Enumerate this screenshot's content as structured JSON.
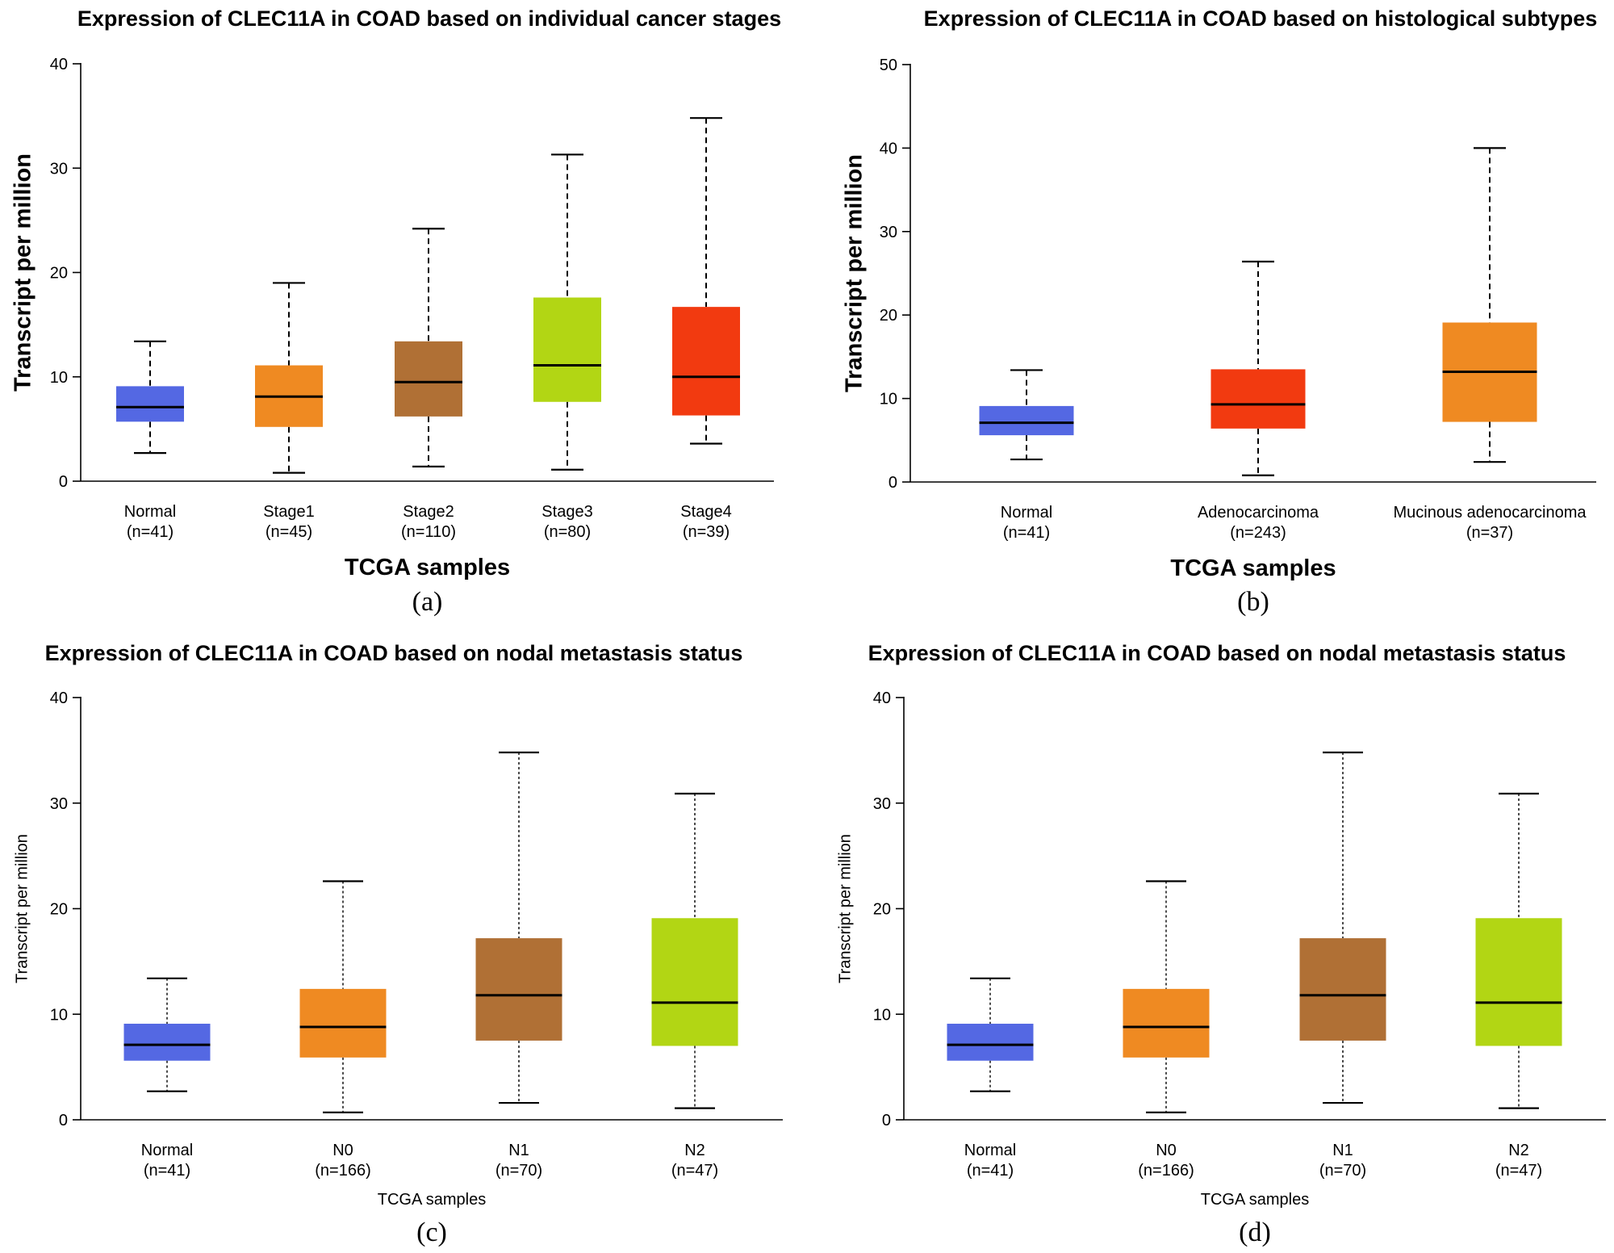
{
  "chart_data": [
    {
      "panel_label": "(a)",
      "type": "box",
      "title": "Expression of CLEC11A in COAD based on individual cancer stages",
      "xlabel": "TCGA samples",
      "ylabel": "Transcript per million",
      "ylim": [
        0,
        40
      ],
      "yticks": [
        0,
        10,
        20,
        30,
        40
      ],
      "grid": false,
      "categories": [
        {
          "name": "Normal",
          "n": "(n=41)",
          "color": "#5468e3",
          "whisker_low": 2.7,
          "q1": 5.7,
          "median": 7.1,
          "q3": 9.1,
          "whisker_high": 13.4
        },
        {
          "name": "Stage1",
          "n": "(n=45)",
          "color": "#ef8a22",
          "whisker_low": 0.8,
          "q1": 5.2,
          "median": 8.1,
          "q3": 11.1,
          "whisker_high": 19.0
        },
        {
          "name": "Stage2",
          "n": "(n=110)",
          "color": "#b07035",
          "whisker_low": 1.4,
          "q1": 6.2,
          "median": 9.5,
          "q3": 13.4,
          "whisker_high": 24.2
        },
        {
          "name": "Stage3",
          "n": "(n=80)",
          "color": "#b2d614",
          "whisker_low": 1.1,
          "q1": 7.6,
          "median": 11.1,
          "q3": 17.6,
          "whisker_high": 31.3
        },
        {
          "name": "Stage4",
          "n": "(n=39)",
          "color": "#f23a10",
          "whisker_low": 3.6,
          "q1": 6.3,
          "median": 10.0,
          "q3": 16.7,
          "whisker_high": 34.8
        }
      ]
    },
    {
      "panel_label": "(b)",
      "type": "box",
      "title": "Expression of CLEC11A in COAD based on histological subtypes",
      "xlabel": "TCGA samples",
      "ylabel": "Transcript per million",
      "ylim": [
        0,
        50
      ],
      "yticks": [
        0,
        10,
        20,
        30,
        40,
        50
      ],
      "grid": false,
      "categories": [
        {
          "name": "Normal",
          "n": "(n=41)",
          "color": "#5468e3",
          "whisker_low": 2.7,
          "q1": 5.6,
          "median": 7.1,
          "q3": 9.1,
          "whisker_high": 13.4
        },
        {
          "name": "Adenocarcinoma",
          "n": "(n=243)",
          "color": "#f23a10",
          "whisker_low": 0.8,
          "q1": 6.4,
          "median": 9.3,
          "q3": 13.5,
          "whisker_high": 26.4
        },
        {
          "name": "Mucinous adenocarcinoma",
          "n": "(n=37)",
          "color": "#ef8a22",
          "whisker_low": 2.4,
          "q1": 7.2,
          "median": 13.2,
          "q3": 19.1,
          "whisker_high": 40.0
        }
      ]
    },
    {
      "panel_label": "(c)",
      "type": "box",
      "title": "Expression of CLEC11A in COAD based on nodal metastasis status",
      "xlabel": "TCGA samples",
      "ylabel": "Transcript per million",
      "ylim": [
        0,
        40
      ],
      "yticks": [
        0,
        10,
        20,
        30,
        40
      ],
      "grid": false,
      "categories": [
        {
          "name": "Normal",
          "n": "(n=41)",
          "color": "#5468e3",
          "whisker_low": 2.7,
          "q1": 5.6,
          "median": 7.1,
          "q3": 9.1,
          "whisker_high": 13.4
        },
        {
          "name": "N0",
          "n": "(n=166)",
          "color": "#ef8a22",
          "whisker_low": 0.7,
          "q1": 5.9,
          "median": 8.8,
          "q3": 12.4,
          "whisker_high": 22.6
        },
        {
          "name": "N1",
          "n": "(n=70)",
          "color": "#b07035",
          "whisker_low": 1.6,
          "q1": 7.5,
          "median": 11.8,
          "q3": 17.2,
          "whisker_high": 34.8
        },
        {
          "name": "N2",
          "n": "(n=47)",
          "color": "#b2d614",
          "whisker_low": 1.1,
          "q1": 7.0,
          "median": 11.1,
          "q3": 19.1,
          "whisker_high": 30.9
        }
      ]
    },
    {
      "panel_label": "(d)",
      "type": "box",
      "title": "Expression of CLEC11A in COAD based on nodal metastasis status",
      "xlabel": "TCGA samples",
      "ylabel": "Transcript per million",
      "ylim": [
        0,
        40
      ],
      "yticks": [
        0,
        10,
        20,
        30,
        40
      ],
      "grid": false,
      "categories": [
        {
          "name": "Normal",
          "n": "(n=41)",
          "color": "#5468e3",
          "whisker_low": 2.7,
          "q1": 5.6,
          "median": 7.1,
          "q3": 9.1,
          "whisker_high": 13.4
        },
        {
          "name": "N0",
          "n": "(n=166)",
          "color": "#ef8a22",
          "whisker_low": 0.7,
          "q1": 5.9,
          "median": 8.8,
          "q3": 12.4,
          "whisker_high": 22.6
        },
        {
          "name": "N1",
          "n": "(n=70)",
          "color": "#b07035",
          "whisker_low": 1.6,
          "q1": 7.5,
          "median": 11.8,
          "q3": 17.2,
          "whisker_high": 34.8
        },
        {
          "name": "N2",
          "n": "(n=47)",
          "color": "#b2d614",
          "whisker_low": 1.1,
          "q1": 7.0,
          "median": 11.1,
          "q3": 19.1,
          "whisker_high": 30.9
        }
      ]
    }
  ]
}
